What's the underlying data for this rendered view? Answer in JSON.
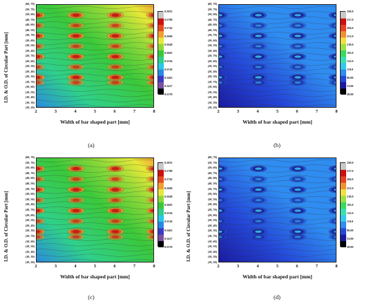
{
  "panels": [
    {
      "id": "a",
      "caption": "(a)",
      "palette": "var1",
      "xlabel": "Width of bar shaped part [mm]",
      "ylabel": "I.D. & O.D. of Circular Part [mm]",
      "colorbar": [
        "0.5835",
        "0.5789",
        "0.5742",
        "0.5696",
        "0.5649",
        "0.5603",
        "0.5556",
        "0.5510",
        "0.5463",
        "0.5417",
        "0.5370"
      ]
    },
    {
      "id": "b",
      "caption": "(b)",
      "palette": "var2",
      "xlabel": "Width of bar shaped part [mm]",
      "ylabel": "",
      "colorbar": [
        "350.0",
        "317.0",
        "284.0",
        "251.0",
        "218.0",
        "185.0",
        "152.0",
        "119.0",
        "86.00",
        "53.00",
        "20.00"
      ]
    },
    {
      "id": "c",
      "caption": "(c)",
      "palette": "var1",
      "xlabel": "Width of bar shaped part [mm]",
      "ylabel": "I.D. & O.D. of Circular Part [mm]",
      "colorbar": [
        "0.5835",
        "0.5789",
        "0.5742",
        "0.5696",
        "0.5649",
        "0.5603",
        "0.5556",
        "0.5510",
        "0.5463",
        "0.5417",
        "0.5370"
      ]
    },
    {
      "id": "d",
      "caption": "(d)",
      "palette": "var2",
      "xlabel": "Width of bar shaped part [mm]",
      "ylabel": "I.D. & O.D. of Circular Part [mm]",
      "colorbar": [
        "350.0",
        "317.0",
        "284.0",
        "251.0",
        "218.0",
        "185.0",
        "152.0",
        "119.0",
        "86.00",
        "53.00",
        "20.00"
      ]
    }
  ],
  "chart_data": {
    "type": "heatmap",
    "x_ticks": [
      "2",
      "3",
      "4",
      "5",
      "6",
      "7",
      "8"
    ],
    "y_ticks": [
      "(60, 70)",
      "(50, 70)",
      "(50, 60)",
      "(40, 70)",
      "(40, 60)",
      "(40, 50)",
      "(30, 70)",
      "(30, 60)",
      "(30, 50)",
      "(30, 40)",
      "(20, 70)",
      "(20, 60)",
      "(20, 50)",
      "(20, 40)",
      "(20, 30)",
      "(10, 70)",
      "(10, 60)",
      "(10, 50)",
      "(10, 40)",
      "(10, 30)",
      "(10, 20)"
    ],
    "xlim": [
      2,
      8
    ]
  },
  "colors": {
    "var1": [
      "#000000",
      "#7a4fa0",
      "#3a3ac8",
      "#2a8ae0",
      "#29c8e8",
      "#2fd08a",
      "#3ac83a",
      "#8fd838",
      "#e6e838",
      "#f0a030",
      "#e84a20",
      "#cc1010",
      "#c8c8c8"
    ],
    "var2": [
      "#000000",
      "#1a1aa0",
      "#2448d8",
      "#2f8cf0",
      "#35c8f0",
      "#38e0b0",
      "#3cd860",
      "#a0e040",
      "#f0e040",
      "#f09030",
      "#e84020",
      "#cc1010",
      "#c8c8c8"
    ]
  }
}
